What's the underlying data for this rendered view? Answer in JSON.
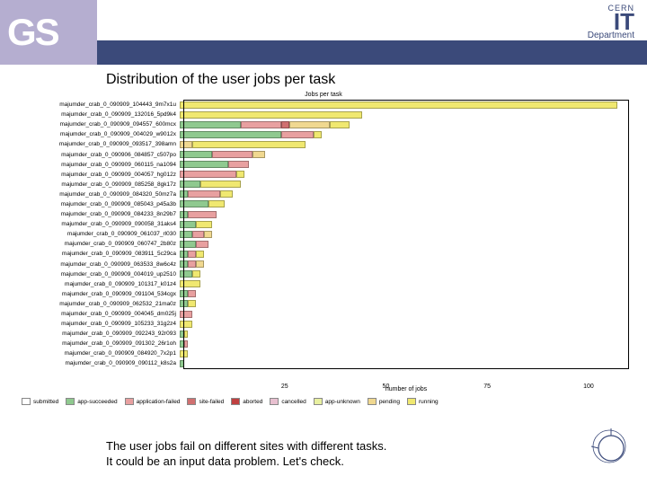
{
  "gs_label": "GS",
  "it_header": {
    "cern": "CERN",
    "it": "IT",
    "dept": "Department"
  },
  "slide_title": "Distribution of the user jobs per task",
  "chart_title": "Jobs per task",
  "x_axis_label": "number of jobs",
  "x_max": 110,
  "x_ticks": [
    {
      "pos": 25,
      "label": "25"
    },
    {
      "pos": 50,
      "label": "50"
    },
    {
      "pos": 75,
      "label": "75"
    },
    {
      "pos": 100,
      "label": "100"
    }
  ],
  "colors": {
    "submitted": "#ffffff",
    "app-succeeded": "#8fc98f",
    "application-failed": "#e8a0a0",
    "site-failed": "#d07070",
    "aborted": "#c04040",
    "cancelled": "#e8c0d0",
    "app-unknown": "#e8f0a0",
    "pending": "#f0d890",
    "running": "#f0e870"
  },
  "legend": [
    {
      "key": "submitted",
      "label": "submitted"
    },
    {
      "key": "app-succeeded",
      "label": "app-succeeded"
    },
    {
      "key": "application-failed",
      "label": "application-failed"
    },
    {
      "key": "site-failed",
      "label": "site-failed"
    },
    {
      "key": "aborted",
      "label": "aborted"
    },
    {
      "key": "cancelled",
      "label": "cancelled"
    },
    {
      "key": "app-unknown",
      "label": "app-unknown"
    },
    {
      "key": "pending",
      "label": "pending"
    },
    {
      "key": "running",
      "label": "running"
    }
  ],
  "tasks": [
    {
      "label": "majumder_crab_0_090909_104443_9m7x1u",
      "segments": [
        [
          "running",
          108
        ]
      ]
    },
    {
      "label": "majumder_crab_0_090909_132016_5pd9k4",
      "segments": [
        [
          "running",
          45
        ]
      ]
    },
    {
      "label": "majumder_crab_0_090909_094557_600mcx",
      "segments": [
        [
          "app-succeeded",
          15
        ],
        [
          "application-failed",
          10
        ],
        [
          "site-failed",
          2
        ],
        [
          "pending",
          10
        ],
        [
          "running",
          5
        ]
      ]
    },
    {
      "label": "majumder_crab_0_090909_004029_w9012x",
      "segments": [
        [
          "app-succeeded",
          25
        ],
        [
          "application-failed",
          8
        ],
        [
          "running",
          2
        ]
      ]
    },
    {
      "label": "majumder_crab_0_090909_093517_398amn",
      "segments": [
        [
          "pending",
          3
        ],
        [
          "running",
          28
        ]
      ]
    },
    {
      "label": "majumder_crab_0_090906_084857_c507po",
      "segments": [
        [
          "app-succeeded",
          8
        ],
        [
          "application-failed",
          10
        ],
        [
          "pending",
          3
        ]
      ]
    },
    {
      "label": "majumder_crab_0_090909_060115_na1094",
      "segments": [
        [
          "app-succeeded",
          12
        ],
        [
          "application-failed",
          5
        ]
      ]
    },
    {
      "label": "majumder_crab_0_090909_004057_hg012z",
      "segments": [
        [
          "application-failed",
          14
        ],
        [
          "running",
          2
        ]
      ]
    },
    {
      "label": "majumder_crab_0_090909_085258_8gk17z",
      "segments": [
        [
          "app-succeeded",
          5
        ],
        [
          "running",
          10
        ]
      ]
    },
    {
      "label": "majumder_crab_0_090909_084320_50mz7a",
      "segments": [
        [
          "app-succeeded",
          2
        ],
        [
          "application-failed",
          8
        ],
        [
          "running",
          3
        ]
      ]
    },
    {
      "label": "majumder_crab_0_090909_085043_p45a3b",
      "segments": [
        [
          "app-succeeded",
          7
        ],
        [
          "running",
          4
        ]
      ]
    },
    {
      "label": "majumder_crab_0_090909_084233_8n29b7",
      "segments": [
        [
          "app-succeeded",
          2
        ],
        [
          "application-failed",
          7
        ]
      ]
    },
    {
      "label": "majumder_crab_0_090909_090058_31aks4",
      "segments": [
        [
          "app-succeeded",
          4
        ],
        [
          "running",
          4
        ]
      ]
    },
    {
      "label": "majumder_crab_0_090909_061037_rl030",
      "segments": [
        [
          "app-succeeded",
          3
        ],
        [
          "application-failed",
          3
        ],
        [
          "pending",
          2
        ]
      ]
    },
    {
      "label": "majumder_crab_0_090909_060747_2b80z",
      "segments": [
        [
          "app-succeeded",
          4
        ],
        [
          "application-failed",
          3
        ]
      ]
    },
    {
      "label": "majumder_crab_0_090909_083911_5c29ca",
      "segments": [
        [
          "app-succeeded",
          2
        ],
        [
          "application-failed",
          2
        ],
        [
          "running",
          2
        ]
      ]
    },
    {
      "label": "majumder_crab_0_090909_063533_8w6c4z",
      "segments": [
        [
          "app-succeeded",
          2
        ],
        [
          "application-failed",
          2
        ],
        [
          "pending",
          2
        ]
      ]
    },
    {
      "label": "majumder_crab_0_090909_004019_up2510",
      "segments": [
        [
          "app-succeeded",
          3
        ],
        [
          "running",
          2
        ]
      ]
    },
    {
      "label": "majumder_crab_0_090909_101317_k01z4",
      "segments": [
        [
          "running",
          5
        ]
      ]
    },
    {
      "label": "majumder_crab_0_090909_091104_534cgx",
      "segments": [
        [
          "app-succeeded",
          2
        ],
        [
          "application-failed",
          2
        ]
      ]
    },
    {
      "label": "majumder_crab_0_090909_062532_21ma0z",
      "segments": [
        [
          "app-succeeded",
          2
        ],
        [
          "running",
          2
        ]
      ]
    },
    {
      "label": "majumder_crab_0_090909_004045_dm025j",
      "segments": [
        [
          "application-failed",
          3
        ]
      ]
    },
    {
      "label": "majumder_crab_0_090909_105233_31g2z4",
      "segments": [
        [
          "running",
          3
        ]
      ]
    },
    {
      "label": "majumder_crab_0_090909_092243_92r093",
      "segments": [
        [
          "app-succeeded",
          1
        ],
        [
          "running",
          1
        ]
      ]
    },
    {
      "label": "majumder_crab_0_090909_091302_26r1oh",
      "segments": [
        [
          "app-succeeded",
          1
        ],
        [
          "application-failed",
          1
        ]
      ]
    },
    {
      "label": "majumder_crab_0_090909_084920_7x2p1",
      "segments": [
        [
          "running",
          2
        ]
      ]
    },
    {
      "label": "majumder_crab_0_090909_090112_k8s2a",
      "segments": [
        [
          "app-succeeded",
          1
        ]
      ]
    }
  ],
  "footer_line1": "The user jobs fail on different sites with different tasks.",
  "footer_line2": "It could be an input data problem. Let's check."
}
